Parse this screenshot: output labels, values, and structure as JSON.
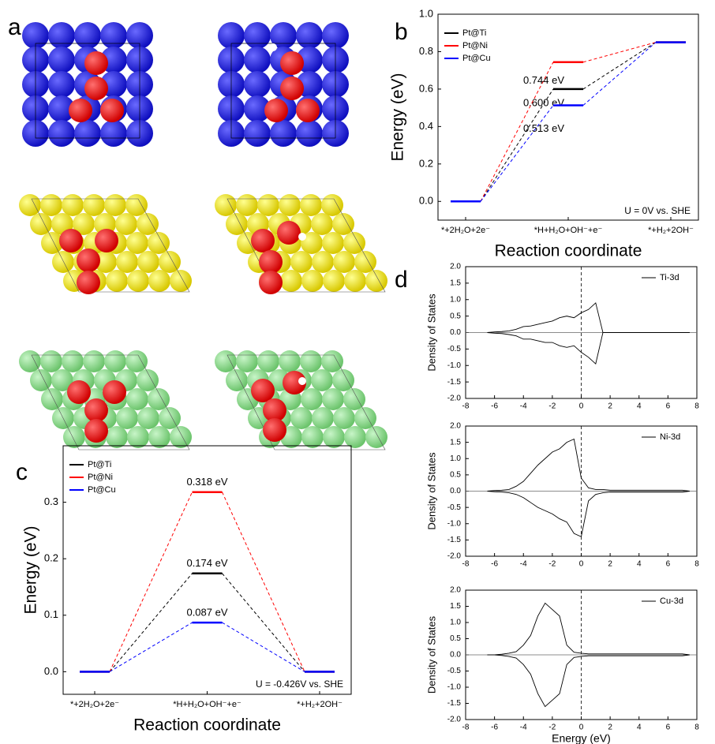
{
  "panel_a": {
    "label": "a"
  },
  "chart_data": [
    {
      "type": "energy_diagram",
      "label": "b",
      "ylabel": "Energy (eV)",
      "xlabel": "Reaction coordinate",
      "categories": [
        "*+2H₂O+2e⁻",
        "*H+H₂O+OH⁻+e⁻",
        "*+H₂+2OH⁻"
      ],
      "series": [
        {
          "name": "Pt@Ti",
          "color": "#000000",
          "values": [
            0,
            0.6,
            0.85
          ],
          "value_labels": [
            null,
            "0.600 eV",
            null
          ]
        },
        {
          "name": "Pt@Ni",
          "color": "#ff0000",
          "values": [
            0,
            0.744,
            0.85
          ],
          "value_labels": [
            null,
            "0.744 eV",
            null
          ]
        },
        {
          "name": "Pt@Cu",
          "color": "#0000ff",
          "values": [
            0,
            0.513,
            0.85
          ],
          "value_labels": [
            null,
            "0.513 eV",
            null
          ]
        }
      ],
      "annotation": "U = 0V vs. SHE",
      "ylim": [
        -0.1,
        1.0
      ],
      "yticks": [
        {
          "value": 0,
          "label": "0.0"
        },
        0.2,
        0.4,
        0.6,
        0.8,
        {
          "value": 1,
          "label": "1.0"
        }
      ],
      "legend": "upper left"
    },
    {
      "type": "energy_diagram",
      "label": "c",
      "ylabel": "Energy (eV)",
      "xlabel": "Reaction coordinate",
      "categories": [
        "*+2H₂O+2e⁻",
        "*H+H₂O+OH⁻+e⁻",
        "*+H₂+2OH⁻"
      ],
      "series": [
        {
          "name": "Pt@Ti",
          "color": "#000000",
          "values": [
            0,
            0.174,
            0
          ],
          "value_labels": [
            null,
            "0.174 eV",
            null
          ]
        },
        {
          "name": "Pt@Ni",
          "color": "#ff0000",
          "values": [
            0,
            0.318,
            0
          ],
          "value_labels": [
            null,
            "0.318 eV",
            null
          ]
        },
        {
          "name": "Pt@Cu",
          "color": "#0000ff",
          "values": [
            0,
            0.087,
            0
          ],
          "value_labels": [
            null,
            "0.087 eV",
            null
          ]
        }
      ],
      "annotation": "U = -0.426V vs. SHE",
      "ylim": [
        -0.04,
        0.4
      ],
      "yticks": [
        {
          "value": 0,
          "label": "0.0"
        },
        0.1,
        0.2,
        0.3
      ],
      "legend": "upper left"
    },
    {
      "type": "line",
      "label": "d",
      "ylabel": "Density of States",
      "x": [
        -6.5,
        -6,
        -5.5,
        -5,
        -4.5,
        -4,
        -3.5,
        -3,
        -2.5,
        -2,
        -1.5,
        -1,
        -0.5,
        0,
        0.5,
        1,
        1.5,
        2,
        2.5,
        3,
        3.5,
        4,
        4.5,
        5,
        5.5,
        6,
        6.5,
        7,
        7.5
      ],
      "series": [
        {
          "name": "Ti-3d",
          "color": "#000000",
          "values": [
            0,
            0.02,
            0.03,
            0.05,
            0.1,
            0.18,
            0.2,
            0.25,
            0.3,
            0.35,
            0.45,
            0.5,
            0.45,
            0.6,
            0.7,
            0.9,
            0,
            0,
            0,
            0,
            0,
            0,
            0,
            0,
            0,
            0,
            0,
            0,
            0
          ]
        },
        {
          "color": "#000000",
          "values": [
            0,
            -0.02,
            -0.03,
            -0.06,
            -0.1,
            -0.2,
            -0.2,
            -0.25,
            -0.3,
            -0.3,
            -0.4,
            -0.45,
            -0.4,
            -0.6,
            -0.75,
            -0.95,
            0,
            0,
            0,
            0,
            0,
            0,
            0,
            0,
            0,
            0,
            0,
            0,
            0
          ]
        }
      ],
      "xlim": [
        -8,
        8
      ],
      "xticks": [
        -8,
        -6,
        -4,
        -2,
        0,
        2,
        4,
        6,
        8
      ],
      "ylim": [
        -2,
        2
      ],
      "yticks": [
        {
          "value": -2,
          "label": "-2.0"
        },
        -1.5,
        {
          "value": -1,
          "label": "-1.0"
        },
        -0.5,
        {
          "value": 0,
          "label": "0.0"
        },
        0.5,
        {
          "value": 1,
          "label": "1.0"
        },
        1.5,
        {
          "value": 2,
          "label": "2.0"
        }
      ],
      "legend": "upper right"
    },
    {
      "type": "line",
      "ylabel": "Density of States",
      "x": [
        -6.5,
        -6,
        -5.5,
        -5,
        -4.5,
        -4,
        -3.5,
        -3,
        -2.5,
        -2,
        -1.5,
        -1,
        -0.5,
        0,
        0.5,
        1,
        1.5,
        2,
        2.5,
        3,
        3.5,
        4,
        4.5,
        5,
        5.5,
        6,
        6.5,
        7,
        7.5
      ],
      "series": [
        {
          "name": "Ni-3d",
          "color": "#000000",
          "values": [
            0,
            0.02,
            0.03,
            0.05,
            0.15,
            0.3,
            0.55,
            0.8,
            1.0,
            1.2,
            1.3,
            1.5,
            1.6,
            0.4,
            0.1,
            0.05,
            0.05,
            0.03,
            0.03,
            0.03,
            0.03,
            0.03,
            0.03,
            0.03,
            0.03,
            0.03,
            0.03,
            0.03,
            0
          ]
        },
        {
          "color": "#000000",
          "values": [
            0,
            -0.02,
            -0.03,
            -0.05,
            -0.1,
            -0.2,
            -0.35,
            -0.5,
            -0.6,
            -0.7,
            -0.85,
            -0.95,
            -1.3,
            -1.4,
            -0.3,
            -0.1,
            -0.05,
            -0.03,
            -0.03,
            -0.03,
            -0.03,
            -0.03,
            -0.03,
            -0.03,
            -0.03,
            -0.03,
            -0.03,
            -0.03,
            0
          ]
        }
      ],
      "xlim": [
        -8,
        8
      ],
      "xticks": [
        -8,
        -6,
        -4,
        -2,
        0,
        2,
        4,
        6,
        8
      ],
      "ylim": [
        -2,
        2
      ],
      "yticks": [
        {
          "value": -2,
          "label": "-2.0"
        },
        -1.5,
        {
          "value": -1,
          "label": "-1.0"
        },
        -0.5,
        {
          "value": 0,
          "label": "0.0"
        },
        0.5,
        {
          "value": 1,
          "label": "1.0"
        },
        1.5,
        {
          "value": 2,
          "label": "2.0"
        }
      ],
      "legend": "upper right"
    },
    {
      "type": "line",
      "ylabel": "Density of States",
      "xlabel": "Energy (eV)",
      "x": [
        -6.5,
        -6,
        -5.5,
        -5,
        -4.5,
        -4,
        -3.5,
        -3,
        -2.5,
        -2,
        -1.5,
        -1,
        -0.5,
        0,
        0.5,
        1,
        1.5,
        2,
        2.5,
        3,
        3.5,
        4,
        4.5,
        5,
        5.5,
        6,
        6.5,
        7,
        7.5
      ],
      "series": [
        {
          "name": "Cu-3d",
          "color": "#000000",
          "values": [
            0,
            0,
            0.02,
            0.05,
            0.1,
            0.3,
            0.6,
            1.2,
            1.6,
            1.4,
            1.2,
            0.3,
            0.08,
            0.05,
            0.03,
            0.03,
            0.03,
            0.03,
            0.03,
            0.03,
            0.03,
            0.03,
            0.03,
            0.03,
            0.03,
            0.03,
            0.03,
            0.03,
            0
          ]
        },
        {
          "color": "#000000",
          "values": [
            0,
            0,
            -0.02,
            -0.05,
            -0.1,
            -0.3,
            -0.6,
            -1.2,
            -1.6,
            -1.4,
            -1.2,
            -0.3,
            -0.08,
            -0.05,
            -0.03,
            -0.03,
            -0.03,
            -0.03,
            -0.03,
            -0.03,
            -0.03,
            -0.03,
            -0.03,
            -0.03,
            -0.03,
            -0.03,
            -0.03,
            -0.03,
            0
          ]
        }
      ],
      "xlim": [
        -8,
        8
      ],
      "xticks": [
        -8,
        -6,
        -4,
        -2,
        0,
        2,
        4,
        6,
        8
      ],
      "ylim": [
        -2,
        2
      ],
      "yticks": [
        {
          "value": -2,
          "label": "-2.0"
        },
        -1.5,
        {
          "value": -1,
          "label": "-1.0"
        },
        -0.5,
        {
          "value": 0,
          "label": "0.0"
        },
        0.5,
        {
          "value": 1,
          "label": "1.0"
        },
        1.5,
        {
          "value": 2,
          "label": "2.0"
        }
      ],
      "legend": "upper right"
    }
  ]
}
